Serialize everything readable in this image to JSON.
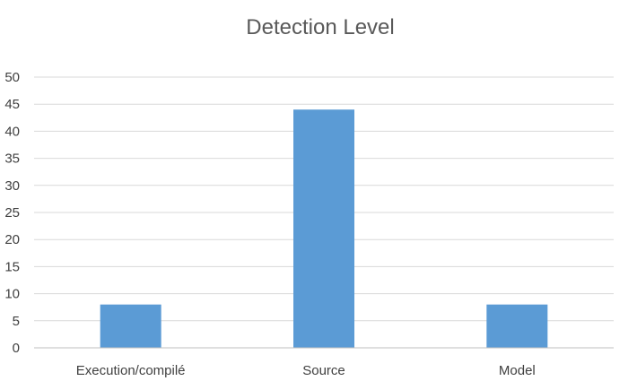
{
  "chart_data": {
    "type": "bar",
    "title": "Detection Level",
    "categories": [
      "Execution/compilé",
      "Source",
      "Model"
    ],
    "values": [
      8,
      44,
      8
    ],
    "xlabel": "",
    "ylabel": "",
    "ylim": [
      0,
      50
    ],
    "yticks": [
      "0",
      "5",
      "10",
      "15",
      "20",
      "25",
      "30",
      "35",
      "40",
      "45",
      "50"
    ],
    "grid": true,
    "legend": "none",
    "bar_color": "#5b9bd5"
  }
}
